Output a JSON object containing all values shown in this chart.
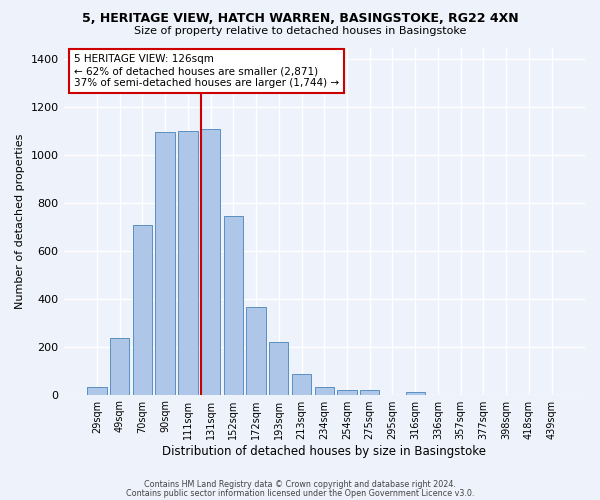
{
  "title_line1": "5, HERITAGE VIEW, HATCH WARREN, BASINGSTOKE, RG22 4XN",
  "title_line2": "Size of property relative to detached houses in Basingstoke",
  "xlabel": "Distribution of detached houses by size in Basingstoke",
  "ylabel": "Number of detached properties",
  "bar_labels": [
    "29sqm",
    "49sqm",
    "70sqm",
    "90sqm",
    "111sqm",
    "131sqm",
    "152sqm",
    "172sqm",
    "193sqm",
    "213sqm",
    "234sqm",
    "254sqm",
    "275sqm",
    "295sqm",
    "316sqm",
    "336sqm",
    "357sqm",
    "377sqm",
    "398sqm",
    "418sqm",
    "439sqm"
  ],
  "bar_values": [
    30,
    235,
    710,
    1095,
    1100,
    1110,
    745,
    365,
    220,
    85,
    30,
    18,
    18,
    0,
    12,
    0,
    0,
    0,
    0,
    0,
    0
  ],
  "bar_color": "#aec6e8",
  "bar_edgecolor": "#5a8fc0",
  "property_line_label": "5 HERITAGE VIEW: 126sqm",
  "pct_smaller": "62% of detached houses are smaller (2,871)",
  "pct_larger": "37% of semi-detached houses are larger (1,744)",
  "annotation_box_color": "#ffffff",
  "annotation_box_edgecolor": "#cc0000",
  "vline_color": "#cc0000",
  "ylim": [
    0,
    1450
  ],
  "yticks": [
    0,
    200,
    400,
    600,
    800,
    1000,
    1200,
    1400
  ],
  "footer_line1": "Contains HM Land Registry data © Crown copyright and database right 2024.",
  "footer_line2": "Contains public sector information licensed under the Open Government Licence v3.0.",
  "bg_color": "#eef2fa",
  "grid_color": "#ffffff"
}
